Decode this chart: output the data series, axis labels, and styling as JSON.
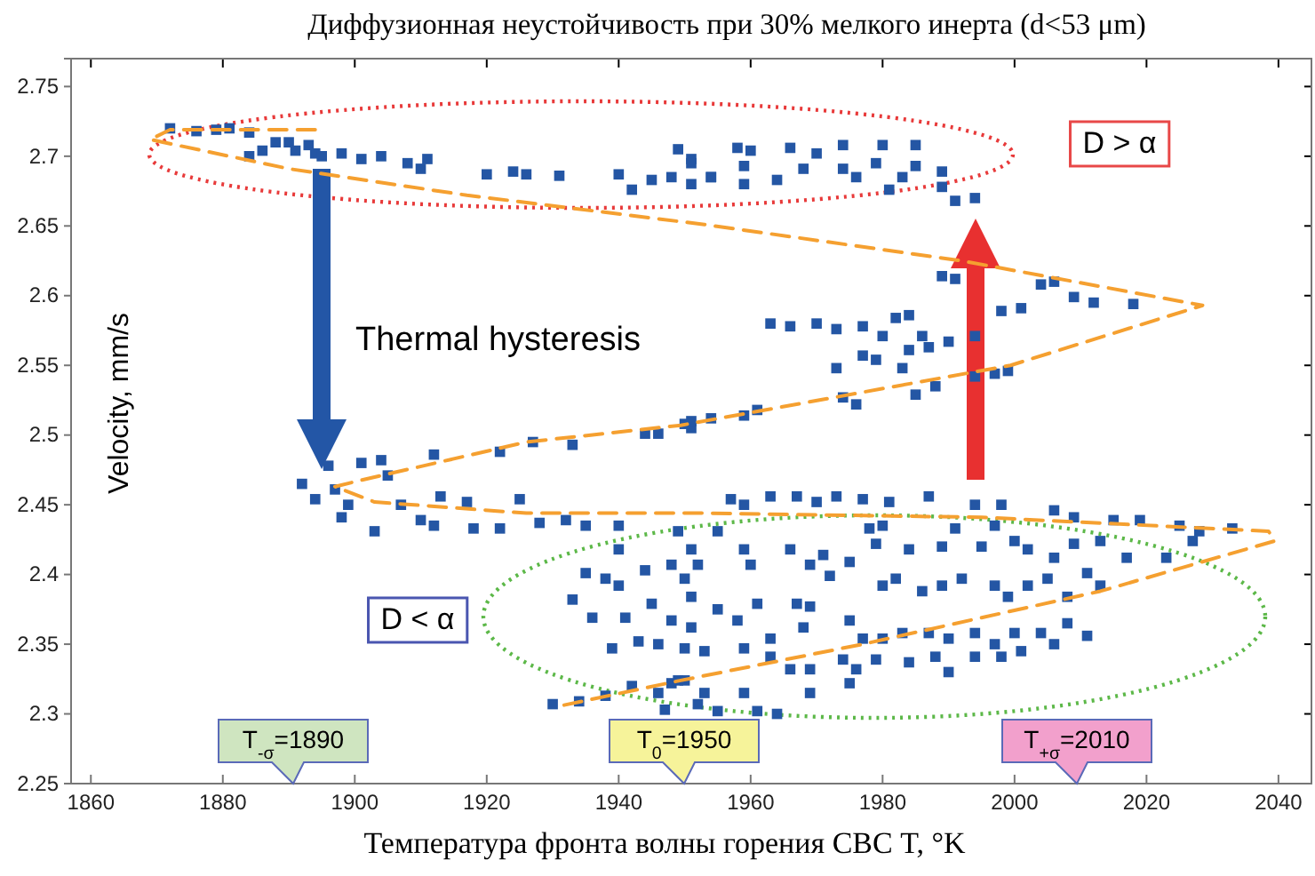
{
  "chart_data": {
    "type": "scatter",
    "title": "Диффузионная неустойчивость при 30% мелкого инерта (d<53 μm)",
    "xlabel": "Температура фронта волны горения СВС  T, °K",
    "ylabel": "Velocity, mm/s",
    "xlim": [
      1857,
      2045
    ],
    "ylim": [
      2.25,
      2.77
    ],
    "xticks": [
      1860,
      1880,
      1900,
      1920,
      1940,
      1960,
      1980,
      2000,
      2020,
      2040
    ],
    "yticks": [
      2.25,
      2.3,
      2.35,
      2.4,
      2.45,
      2.5,
      2.55,
      2.6,
      2.65,
      2.7,
      2.75
    ],
    "grid": false,
    "series": [
      {
        "type": "scatter",
        "color": "#2456a4",
        "marker": "square",
        "x": [
          1872,
          1876,
          1879,
          1881,
          1884,
          1884,
          1886,
          1888,
          1890,
          1891,
          1893,
          1894,
          1895,
          1898,
          1901,
          1904,
          1908,
          1910,
          1911,
          1920,
          1924,
          1926,
          1931,
          1940,
          1942,
          1945,
          1948,
          1949,
          1951,
          1951,
          1954,
          1951,
          1954,
          1958,
          1959,
          1960,
          1959,
          1964,
          1966,
          1968,
          1970,
          1974,
          1974,
          1976,
          1979,
          1980,
          1981,
          1983,
          1985,
          1985,
          1989,
          1989,
          1991,
          1994,
          1989,
          1991,
          2004,
          2006,
          2009,
          2012,
          2018,
          2001,
          1998,
          1963,
          1966,
          1970,
          1973,
          1977,
          1980,
          1982,
          1984,
          1986,
          1987,
          1990,
          1984,
          1979,
          1977,
          1973,
          1983,
          1994,
          1994,
          1997,
          1999,
          1974,
          1976,
          1985,
          1988,
          1961,
          1959,
          1954,
          1951,
          1892,
          1894,
          1897,
          1899,
          1898,
          1896,
          1901,
          1904,
          1905,
          1903,
          1907,
          1910,
          1912,
          1912,
          1913,
          1917,
          1918,
          1922,
          1925,
          1922,
          1927,
          1933,
          1928,
          1932,
          1935,
          1940,
          1944,
          1946,
          1950,
          1951,
          1940,
          1935,
          1938,
          1940,
          1944,
          1948,
          1950,
          1951,
          1933,
          1936,
          1941,
          1945,
          1948,
          1939,
          1943,
          1946,
          1950,
          1930,
          1934,
          1938,
          1942,
          1946,
          1948,
          1950,
          1947,
          1957,
          1959,
          1963,
          1967,
          1970,
          1973,
          1977,
          1981,
          1987,
          1994,
          1998,
          2006,
          2009,
          2015,
          2019,
          2025,
          2028,
          2033,
          1949,
          1955,
          1959,
          1966,
          1971,
          1978,
          1980,
          1979,
          1984,
          1989,
          1991,
          1995,
          1997,
          2000,
          2002,
          2006,
          2009,
          2013,
          2017,
          2023,
          2027,
          1952,
          1960,
          1969,
          1972,
          1975,
          1980,
          1982,
          1986,
          1989,
          1992,
          1997,
          1999,
          2002,
          2005,
          2008,
          2011,
          2013,
          1951,
          1955,
          1961,
          1967,
          1969,
          1951,
          1958,
          1963,
          1968,
          1975,
          1977,
          1980,
          1983,
          1987,
          1990,
          1994,
          1997,
          2000,
          2004,
          2008,
          2011,
          1953,
          1959,
          1963,
          1966,
          1969,
          1974,
          1976,
          1979,
          1984,
          1988,
          1990,
          1994,
          1998,
          2001,
          2006,
          1949,
          1953,
          1959,
          1961,
          1964,
          1969,
          1975,
          1955,
          1952
        ],
        "values": [
          2.72,
          2.718,
          2.719,
          2.72,
          2.717,
          2.7,
          2.704,
          2.71,
          2.71,
          2.704,
          2.708,
          2.702,
          2.7,
          2.702,
          2.698,
          2.7,
          2.695,
          2.691,
          2.698,
          2.687,
          2.689,
          2.687,
          2.686,
          2.687,
          2.676,
          2.683,
          2.685,
          2.705,
          2.698,
          2.68,
          2.685,
          2.695,
          2.685,
          2.706,
          2.693,
          2.704,
          2.68,
          2.683,
          2.706,
          2.691,
          2.702,
          2.708,
          2.691,
          2.685,
          2.695,
          2.708,
          2.676,
          2.685,
          2.708,
          2.693,
          2.689,
          2.678,
          2.668,
          2.67,
          2.614,
          2.612,
          2.608,
          2.61,
          2.599,
          2.595,
          2.594,
          2.591,
          2.589,
          2.58,
          2.578,
          2.58,
          2.576,
          2.578,
          2.571,
          2.584,
          2.586,
          2.571,
          2.563,
          2.567,
          2.561,
          2.554,
          2.557,
          2.548,
          2.548,
          2.571,
          2.542,
          2.544,
          2.546,
          2.527,
          2.522,
          2.529,
          2.535,
          2.518,
          2.514,
          2.512,
          2.505,
          2.465,
          2.454,
          2.461,
          2.45,
          2.441,
          2.478,
          2.48,
          2.482,
          2.471,
          2.431,
          2.45,
          2.439,
          2.435,
          2.486,
          2.456,
          2.452,
          2.433,
          2.488,
          2.454,
          2.433,
          2.495,
          2.493,
          2.437,
          2.439,
          2.435,
          2.435,
          2.501,
          2.501,
          2.508,
          2.51,
          2.418,
          2.401,
          2.397,
          2.392,
          2.403,
          2.407,
          2.397,
          2.418,
          2.382,
          2.369,
          2.369,
          2.379,
          2.367,
          2.347,
          2.352,
          2.35,
          2.347,
          2.307,
          2.309,
          2.313,
          2.32,
          2.315,
          2.322,
          2.324,
          2.303,
          2.454,
          2.45,
          2.456,
          2.456,
          2.452,
          2.456,
          2.454,
          2.452,
          2.456,
          2.45,
          2.45,
          2.446,
          2.441,
          2.439,
          2.439,
          2.435,
          2.431,
          2.433,
          2.431,
          2.431,
          2.418,
          2.418,
          2.414,
          2.433,
          2.435,
          2.422,
          2.418,
          2.42,
          2.433,
          2.42,
          2.435,
          2.424,
          2.418,
          2.412,
          2.422,
          2.424,
          2.412,
          2.412,
          2.424,
          2.407,
          2.407,
          2.407,
          2.399,
          2.409,
          2.392,
          2.397,
          2.388,
          2.392,
          2.397,
          2.392,
          2.384,
          2.392,
          2.397,
          2.384,
          2.401,
          2.392,
          2.384,
          2.375,
          2.379,
          2.379,
          2.377,
          2.362,
          2.367,
          2.354,
          2.362,
          2.367,
          2.354,
          2.354,
          2.358,
          2.358,
          2.354,
          2.358,
          2.35,
          2.358,
          2.358,
          2.365,
          2.356,
          2.345,
          2.347,
          2.341,
          2.332,
          2.332,
          2.339,
          2.332,
          2.339,
          2.337,
          2.341,
          2.33,
          2.341,
          2.341,
          2.345,
          2.35,
          2.324,
          2.315,
          2.315,
          2.302,
          2.3,
          2.315,
          2.322,
          2.302,
          2.307
        ]
      },
      {
        "type": "line",
        "color": "#f5a030",
        "line_style": "dashed",
        "marker": "none",
        "x": [
          1894,
          1872,
          1869,
          1890,
          1917,
          1953,
          1992,
          2028.5,
          1999.4,
          1949.4,
          1926,
          1900.4,
          1897,
          1903,
          1926,
          1953,
          1995,
          2038.5,
          2039.4,
          2013,
          1977,
          1949.4,
          1930.4
        ],
        "values": [
          2.719,
          2.719,
          2.712,
          2.691,
          2.672,
          2.651,
          2.625,
          2.593,
          2.55,
          2.507,
          2.495,
          2.467,
          2.463,
          2.452,
          2.444,
          2.444,
          2.441,
          2.431,
          2.424,
          2.388,
          2.35,
          2.324,
          2.305
        ]
      }
    ],
    "annotations": [
      "Thermal hysteresis",
      "D > α",
      "D < α",
      "T$_{-σ}$=1890",
      "T$_{0}$=1950",
      "T$_{+σ}$=2010"
    ]
  }
}
